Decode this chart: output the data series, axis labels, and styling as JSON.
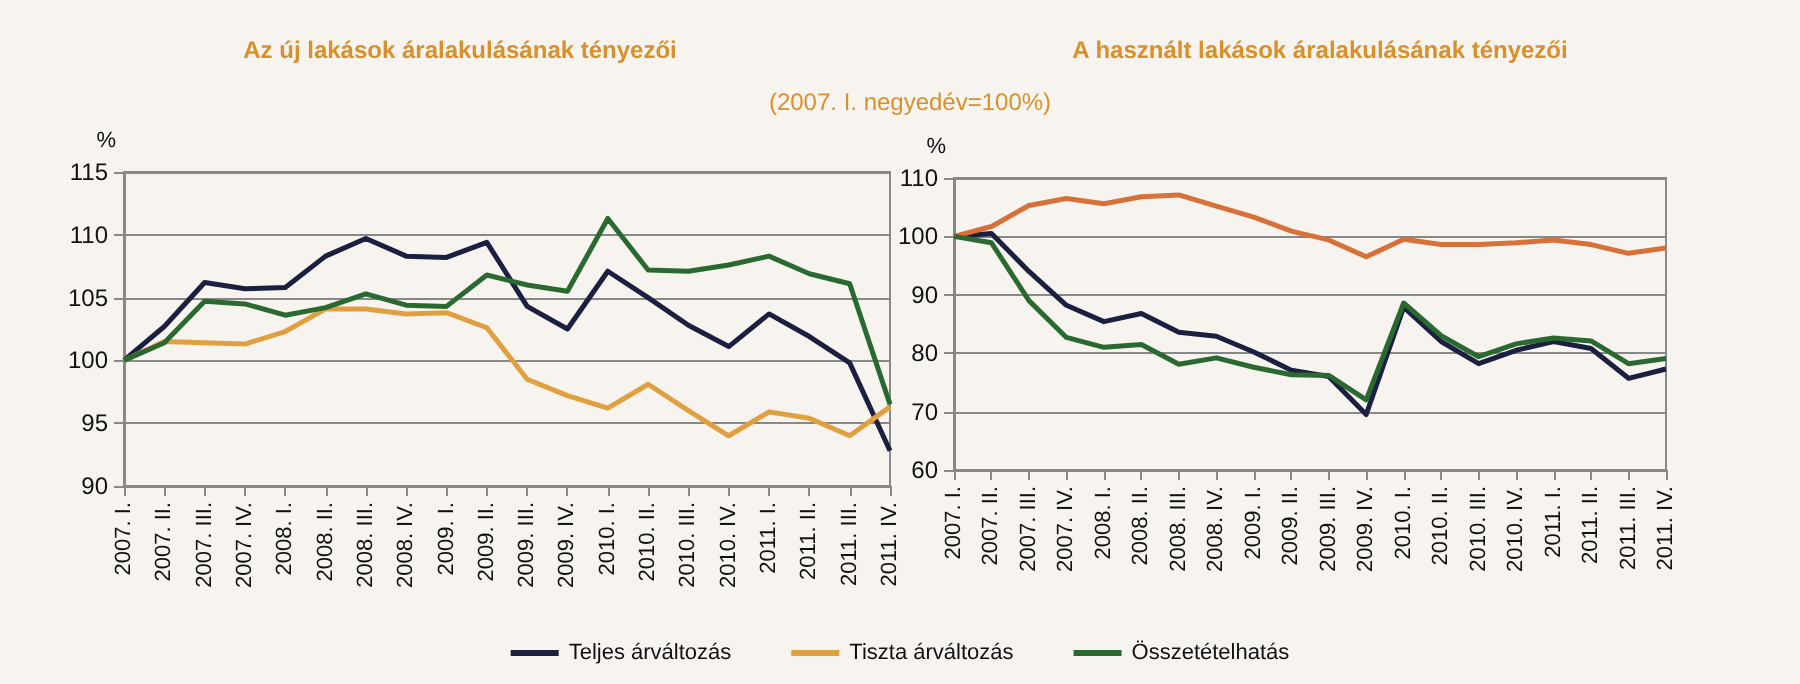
{
  "chart_data": [
    {
      "type": "line",
      "title": "Az új lakások áralakulásának tényezői",
      "subtitle": "(2007. I. negyedév=100%)",
      "ylabel": "%",
      "categories": [
        "2007. I.",
        "2007. II.",
        "2007. III.",
        "2007. IV.",
        "2008. I.",
        "2008. II.",
        "2008. III.",
        "2008. IV.",
        "2009. I.",
        "2009. II.",
        "2009. III.",
        "2009. IV.",
        "2010. I.",
        "2010. II.",
        "2010. III.",
        "2010. IV.",
        "2011. I.",
        "2011. II.",
        "2011. III.",
        "2011. IV."
      ],
      "series": [
        {
          "name": "Teljes árváltozás",
          "color": "#1b1f40",
          "values": [
            100,
            102.7,
            106.2,
            105.7,
            105.8,
            108.3,
            109.7,
            108.3,
            108.2,
            109.4,
            104.3,
            102.5,
            107.1,
            105.0,
            102.8,
            101.1,
            103.7,
            101.9,
            99.8,
            92.8
          ]
        },
        {
          "name": "Tiszta árváltozás",
          "color": "#e0a040",
          "values": [
            100,
            101.5,
            101.4,
            101.3,
            102.3,
            104.1,
            104.1,
            103.7,
            103.8,
            102.6,
            98.5,
            97.2,
            96.2,
            98.1,
            96.0,
            94.0,
            95.9,
            95.4,
            94.0,
            96.3
          ]
        },
        {
          "name": "Összetételhatás",
          "color": "#2a6a30",
          "values": [
            100,
            101.4,
            104.7,
            104.5,
            103.6,
            104.2,
            105.3,
            104.4,
            104.3,
            106.8,
            106.0,
            105.5,
            111.3,
            107.2,
            107.1,
            107.6,
            108.3,
            106.9,
            106.1,
            96.5
          ]
        }
      ],
      "ylim": [
        90,
        115
      ],
      "yticks": [
        90,
        95,
        100,
        105,
        110,
        115
      ],
      "grid": "y",
      "legend": "bottom",
      "marker": "none",
      "line_style": "solid"
    },
    {
      "type": "line",
      "title": "A használt lakások áralakulásának tényezői",
      "ylabel": "%",
      "categories": [
        "2007. I.",
        "2007. II.",
        "2007. III.",
        "2007. IV.",
        "2008. I.",
        "2008. II.",
        "2008. III.",
        "2008. IV.",
        "2009. I.",
        "2009. II.",
        "2009. III.",
        "2009. IV.",
        "2010. I.",
        "2010. II.",
        "2010. III.",
        "2010. IV.",
        "2011. I.",
        "2011. II.",
        "2011. III.",
        "2011. IV."
      ],
      "series": [
        {
          "color": "#1b1f40",
          "values": [
            100,
            100.5,
            94.0,
            88.2,
            85.4,
            86.8,
            83.6,
            82.9,
            80.2,
            77.1,
            76.0,
            69.5,
            87.9,
            82.0,
            78.2,
            80.5,
            82.0,
            80.8,
            75.7,
            77.3
          ]
        },
        {
          "color": "#d8703a",
          "values": [
            100,
            101.7,
            105.3,
            106.5,
            105.6,
            106.8,
            107.1,
            105.2,
            103.3,
            100.9,
            99.4,
            96.5,
            99.5,
            98.6,
            98.6,
            98.9,
            99.4,
            98.6,
            97.1,
            98.0
          ]
        },
        {
          "color": "#2a6a30",
          "values": [
            100,
            98.9,
            89.0,
            82.7,
            81.0,
            81.5,
            78.1,
            79.2,
            77.6,
            76.3,
            76.2,
            72.0,
            88.6,
            83.0,
            79.4,
            81.6,
            82.6,
            82.1,
            78.2,
            79.1
          ]
        }
      ],
      "ylim": [
        60,
        110
      ],
      "yticks": [
        60,
        70,
        80,
        90,
        100,
        110
      ],
      "grid": "y",
      "legend": false,
      "marker": "none",
      "line_style": "solid"
    }
  ]
}
